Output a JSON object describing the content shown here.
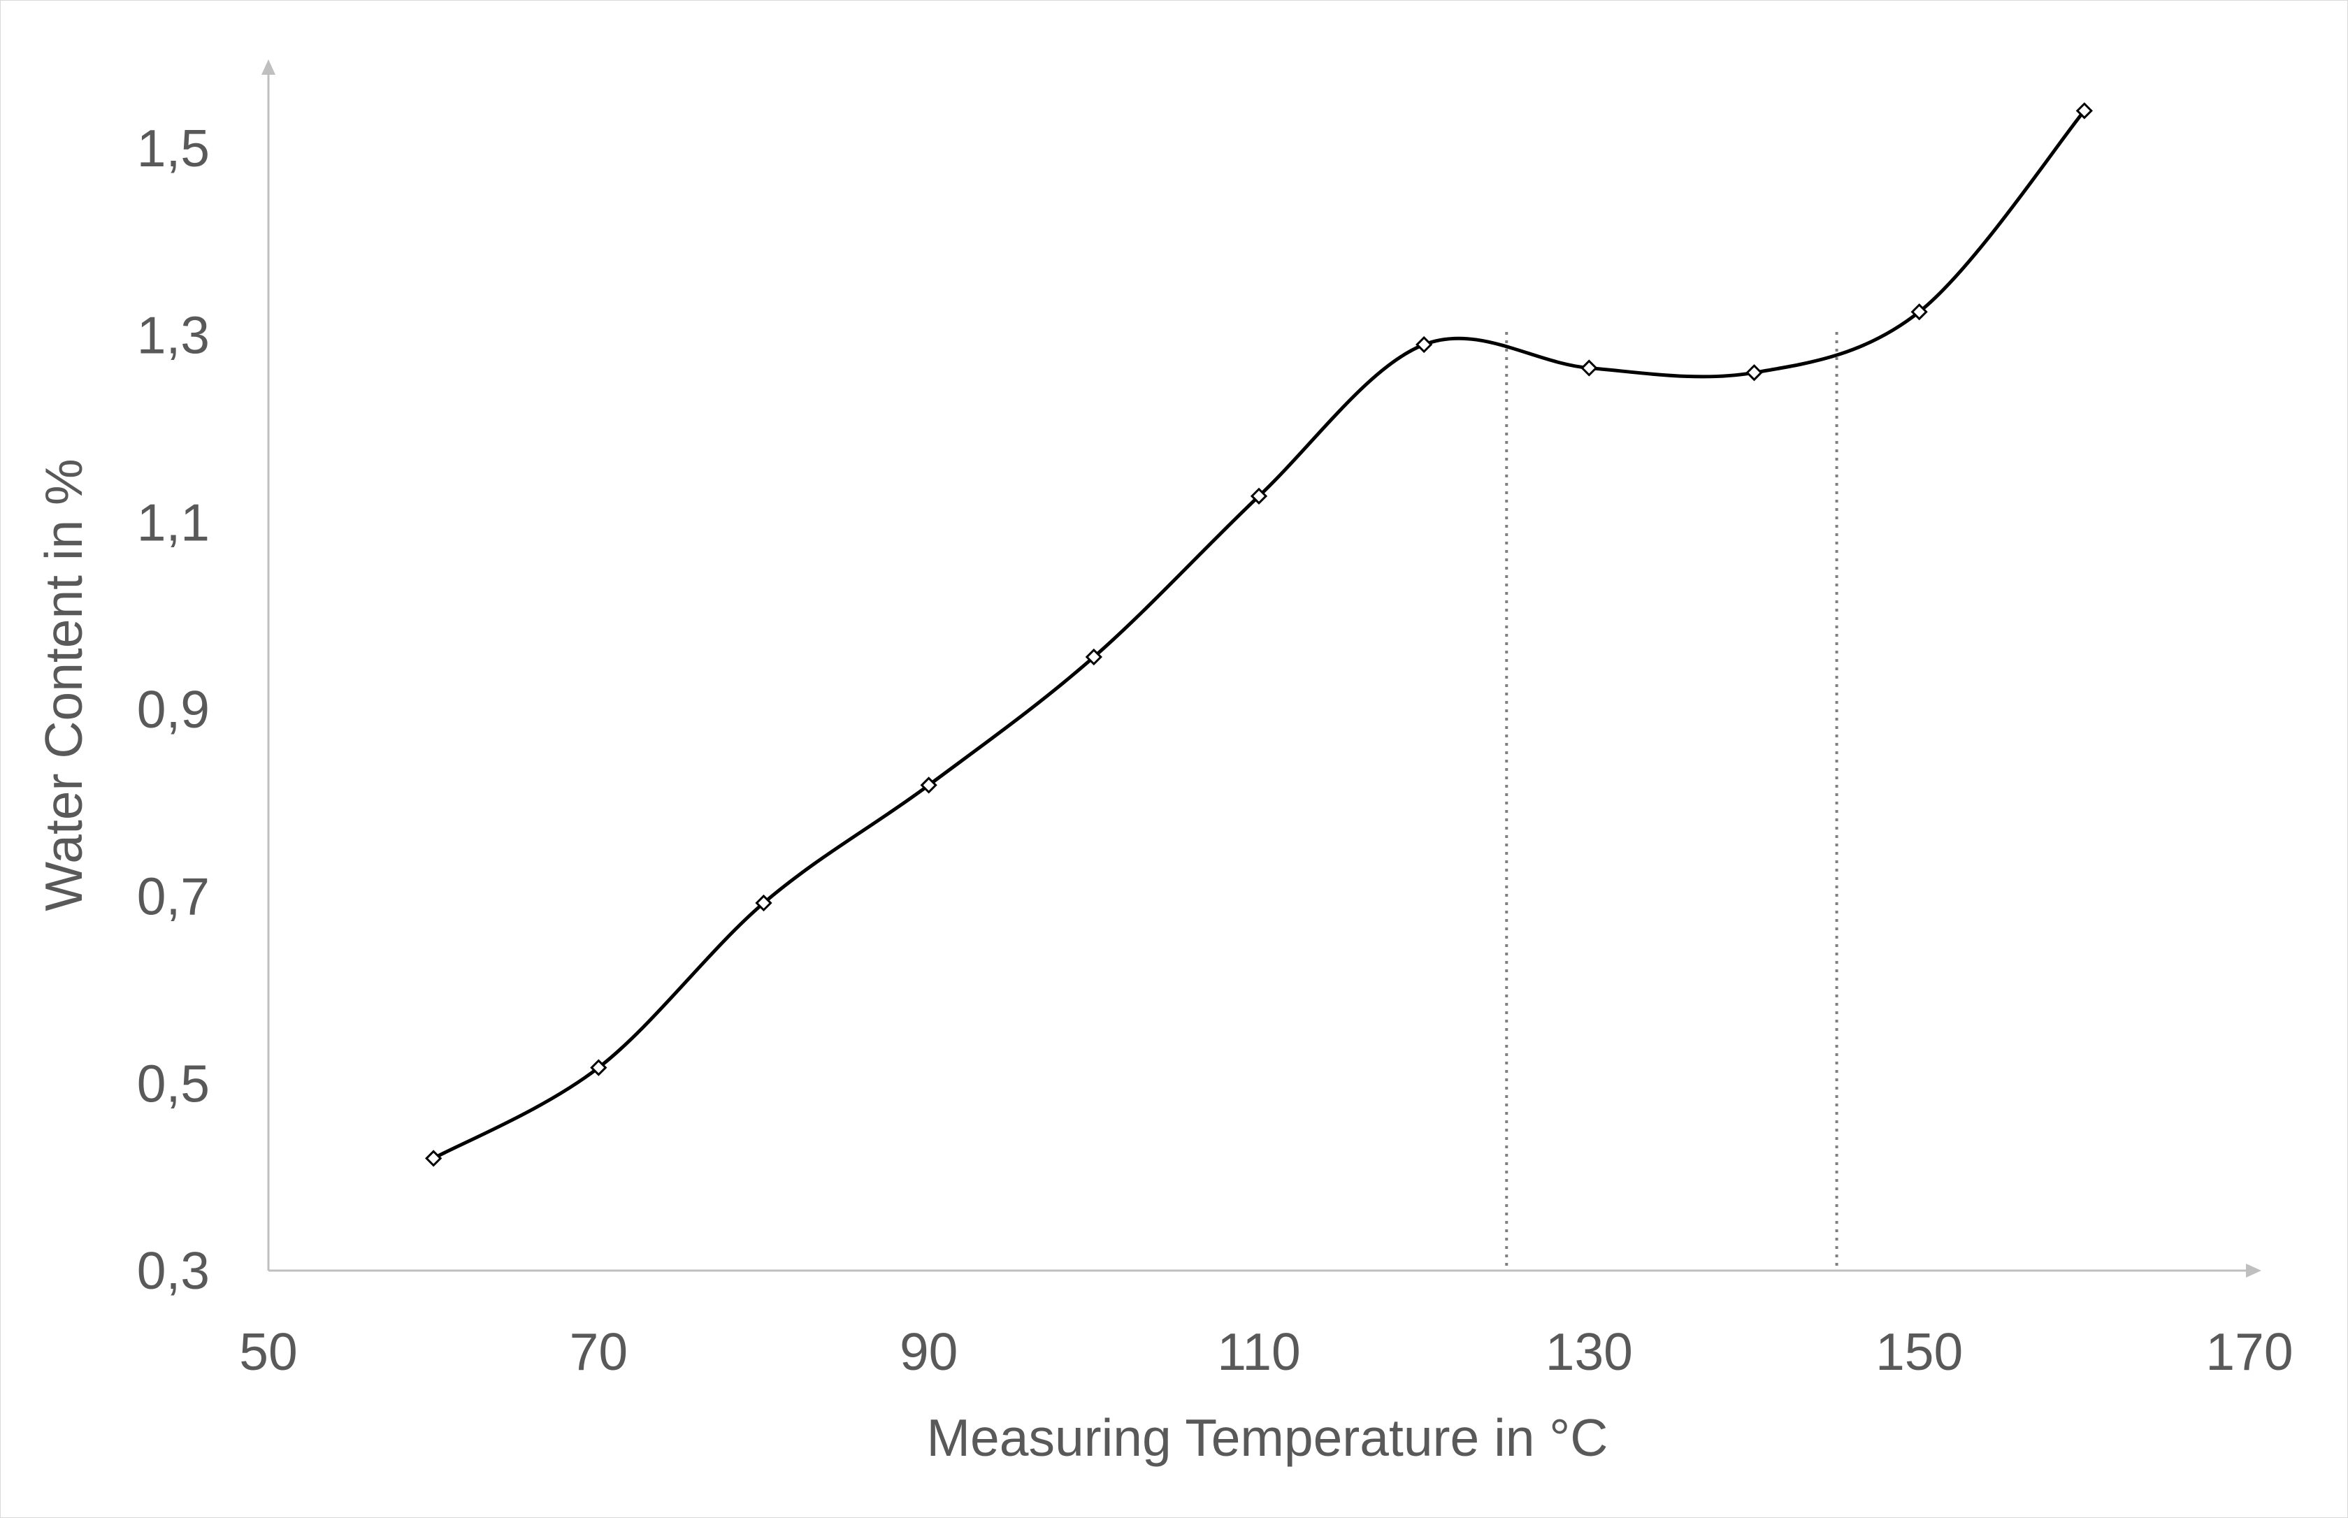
{
  "chart_data": {
    "type": "scatter",
    "title": "",
    "xlabel": "Measuring Temperature in °C",
    "ylabel": "Water Content in %",
    "xlim": [
      50,
      170
    ],
    "ylim": [
      0.3,
      1.6
    ],
    "x_ticks": [
      50,
      70,
      90,
      110,
      130,
      150,
      170
    ],
    "x_tick_labels": [
      "50",
      "70",
      "90",
      "110",
      "130",
      "150",
      "170"
    ],
    "y_ticks": [
      0.3,
      0.5,
      0.7,
      0.9,
      1.1,
      1.3,
      1.5
    ],
    "y_tick_labels": [
      "0,3",
      "0,5",
      "0,7",
      "0,9",
      "1,1",
      "1,3",
      "1,5"
    ],
    "grid": false,
    "legend": "none",
    "smoothed_line": true,
    "marker": "diamond",
    "series": [
      {
        "x": [
          60,
          70,
          80,
          90,
          100,
          110,
          120,
          130,
          140,
          150,
          160
        ],
        "y": [
          0.42,
          0.517,
          0.693,
          0.819,
          0.956,
          1.128,
          1.29,
          1.265,
          1.26,
          1.325,
          1.54
        ],
        "color": "#000000"
      }
    ],
    "reference_lines": [
      {
        "orientation": "vertical",
        "x": 125,
        "style": "dotted",
        "color": "#808080"
      },
      {
        "orientation": "vertical",
        "x": 145,
        "style": "dotted",
        "color": "#808080"
      }
    ],
    "axis_color": "#bfbfbf",
    "text_color": "#595959"
  }
}
